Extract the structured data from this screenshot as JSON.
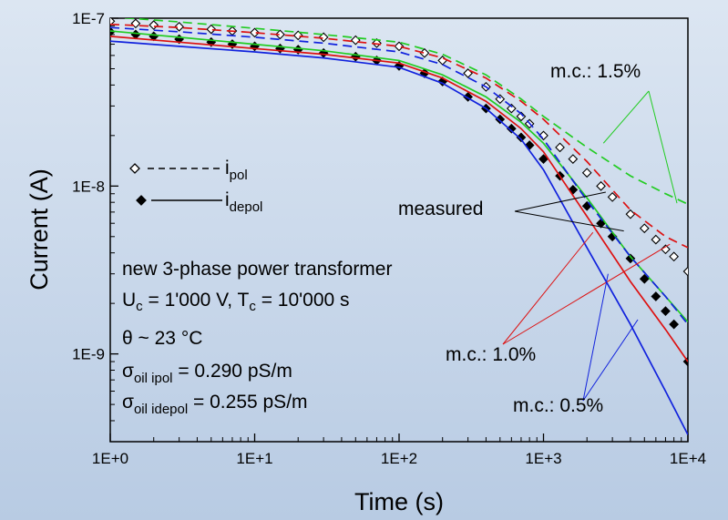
{
  "chart_data": {
    "type": "line",
    "xlabel": "Time (s)",
    "ylabel": "Current (A)",
    "x_scale": "log",
    "y_scale": "log",
    "xlim": [
      1,
      10000
    ],
    "ylim": [
      3e-10,
      1e-07
    ],
    "x_ticks": [
      1,
      10,
      100,
      1000,
      10000
    ],
    "x_tick_labels": [
      "1E+0",
      "1E+1",
      "1E+2",
      "1E+3",
      "1E+4"
    ],
    "y_ticks": [
      1e-09,
      1e-08,
      1e-07
    ],
    "y_tick_labels": [
      "1E-9",
      "1E-8",
      "1E-7"
    ],
    "grid": false,
    "legend": {
      "position": "center-left",
      "entries": [
        {
          "prefix": "i",
          "sub": "pol",
          "marker": "open-diamond",
          "line": "dashed"
        },
        {
          "prefix": "i",
          "sub": "depol",
          "marker": "filled-diamond",
          "line": "solid"
        }
      ]
    },
    "info": {
      "line1": "new 3-phase power transformer",
      "line2": {
        "u": "U",
        "u_sub": "c",
        "u_rest": " = 1'000 V, T",
        "t_sub": "c",
        "t_rest": " = 10'000 s"
      },
      "line3": {
        "sym": "θ",
        "rest": " ~ 23 °C"
      },
      "line4": {
        "sym": "σ",
        "sub": "oil ipol",
        "rest": " = 0.290 pS/m"
      },
      "line5": {
        "sym": "σ",
        "sub": "oil idepol",
        "rest": " = 0.255 pS/m"
      }
    },
    "annotations": [
      {
        "text": "measured",
        "color": "#000000"
      },
      {
        "text": "m.c.: 1.5%",
        "color": "#22cc22"
      },
      {
        "text": "m.c.: 1.0%",
        "color": "#dd1111"
      },
      {
        "text": "m.c.: 0.5%",
        "color": "#1122dd"
      }
    ],
    "series": [
      {
        "kind": "measured-ipol",
        "color": "#000000",
        "marker": "open-diamond",
        "x": [
          1,
          1.5,
          2,
          3,
          5,
          7,
          10,
          15,
          20,
          30,
          50,
          70,
          100,
          150,
          200,
          300,
          400,
          500,
          600,
          700,
          800,
          1000,
          1300,
          1600,
          2000,
          2500,
          3000,
          4000,
          5000,
          6000,
          7000,
          8000,
          10000
        ],
        "y": [
          9.6e-08,
          9.3e-08,
          9.1e-08,
          8.9e-08,
          8.6e-08,
          8.4e-08,
          8.2e-08,
          8e-08,
          7.9e-08,
          7.7e-08,
          7.4e-08,
          7.1e-08,
          6.8e-08,
          6.2e-08,
          5.6e-08,
          4.7e-08,
          3.9e-08,
          3.3e-08,
          2.9e-08,
          2.6e-08,
          2.35e-08,
          2e-08,
          1.7e-08,
          1.45e-08,
          1.2e-08,
          1e-08,
          8.6e-09,
          6.8e-09,
          5.6e-09,
          4.8e-09,
          4.2e-09,
          3.8e-09,
          3.1e-09
        ]
      },
      {
        "kind": "measured-idepol",
        "color": "#000000",
        "marker": "filled-diamond",
        "x": [
          1,
          1.5,
          2,
          3,
          5,
          7,
          10,
          15,
          20,
          30,
          50,
          70,
          100,
          150,
          200,
          300,
          400,
          500,
          600,
          700,
          800,
          1000,
          1300,
          1600,
          2000,
          2500,
          3000,
          4000,
          5000,
          6000,
          7000,
          8000,
          10000
        ],
        "y": [
          8.3e-08,
          8e-08,
          7.8e-08,
          7.5e-08,
          7.2e-08,
          7e-08,
          6.8e-08,
          6.6e-08,
          6.5e-08,
          6.2e-08,
          5.9e-08,
          5.6e-08,
          5.2e-08,
          4.7e-08,
          4.2e-08,
          3.4e-08,
          2.9e-08,
          2.5e-08,
          2.2e-08,
          1.95e-08,
          1.75e-08,
          1.45e-08,
          1.15e-08,
          9.5e-09,
          7.6e-09,
          6e-09,
          5e-09,
          3.7e-09,
          2.8e-09,
          2.2e-09,
          1.8e-09,
          1.5e-09,
          9e-10
        ]
      },
      {
        "kind": "model-ipol",
        "mc": "1.5%",
        "color": "#22cc22",
        "line": "dashed",
        "x": [
          1,
          3,
          10,
          30,
          100,
          200,
          400,
          700,
          1000,
          2000,
          4000,
          7000,
          10000
        ],
        "y": [
          1.02e-07,
          9.5e-08,
          8.7e-08,
          8e-08,
          7.2e-08,
          6.1e-08,
          4.6e-08,
          3.3e-08,
          2.6e-08,
          1.7e-08,
          1.15e-08,
          9e-09,
          7.8e-09
        ]
      },
      {
        "kind": "model-idepol",
        "mc": "1.5%",
        "color": "#22cc22",
        "line": "solid",
        "x": [
          1,
          3,
          10,
          30,
          100,
          200,
          400,
          700,
          1000,
          2000,
          4000,
          7000,
          10000
        ],
        "y": [
          8.4e-08,
          7.7e-08,
          7e-08,
          6.4e-08,
          5.6e-08,
          4.6e-08,
          3.4e-08,
          2.4e-08,
          1.8e-08,
          8.5e-09,
          3.8e-09,
          2.2e-09,
          1.55e-09
        ]
      },
      {
        "kind": "model-ipol",
        "mc": "1.0%",
        "color": "#dd1111",
        "line": "dashed",
        "x": [
          1,
          3,
          10,
          30,
          100,
          200,
          400,
          700,
          1000,
          2000,
          4000,
          7000,
          10000
        ],
        "y": [
          9.2e-08,
          8.8e-08,
          8.2e-08,
          7.6e-08,
          6.8e-08,
          5.8e-08,
          4.4e-08,
          3.2e-08,
          2.5e-08,
          1.4e-08,
          7.2e-09,
          5e-09,
          4.3e-09
        ]
      },
      {
        "kind": "model-idepol",
        "mc": "1.0%",
        "color": "#dd1111",
        "line": "solid",
        "x": [
          1,
          3,
          10,
          30,
          100,
          200,
          400,
          700,
          1000,
          2000,
          4000,
          7000,
          10000
        ],
        "y": [
          7.8e-08,
          7.2e-08,
          6.6e-08,
          6.1e-08,
          5.4e-08,
          4.4e-08,
          3.2e-08,
          2.2e-08,
          1.6e-08,
          6.6e-09,
          2.7e-09,
          1.4e-09,
          9e-10
        ]
      },
      {
        "kind": "model-ipol",
        "mc": "0.5%",
        "color": "#1122dd",
        "line": "dashed",
        "x": [
          1,
          3,
          10,
          30,
          100,
          200,
          400,
          700,
          1000,
          2000,
          4000,
          7000,
          10000
        ],
        "y": [
          8.8e-08,
          8.3e-08,
          7.7e-08,
          7.1e-08,
          6.3e-08,
          5.3e-08,
          3.9e-08,
          2.7e-08,
          1.9e-08,
          8.2e-09,
          3.8e-09,
          2.2e-09,
          1.5e-09
        ]
      },
      {
        "kind": "model-idepol",
        "mc": "0.5%",
        "color": "#1122dd",
        "line": "solid",
        "x": [
          1,
          3,
          10,
          30,
          100,
          200,
          400,
          700,
          1000,
          2000,
          4000,
          7000,
          10000
        ],
        "y": [
          7.3e-08,
          6.8e-08,
          6.3e-08,
          5.8e-08,
          5.1e-08,
          4.1e-08,
          2.9e-08,
          1.9e-08,
          1.25e-08,
          4.3e-09,
          1.5e-09,
          6e-10,
          3.3e-10
        ]
      }
    ]
  }
}
